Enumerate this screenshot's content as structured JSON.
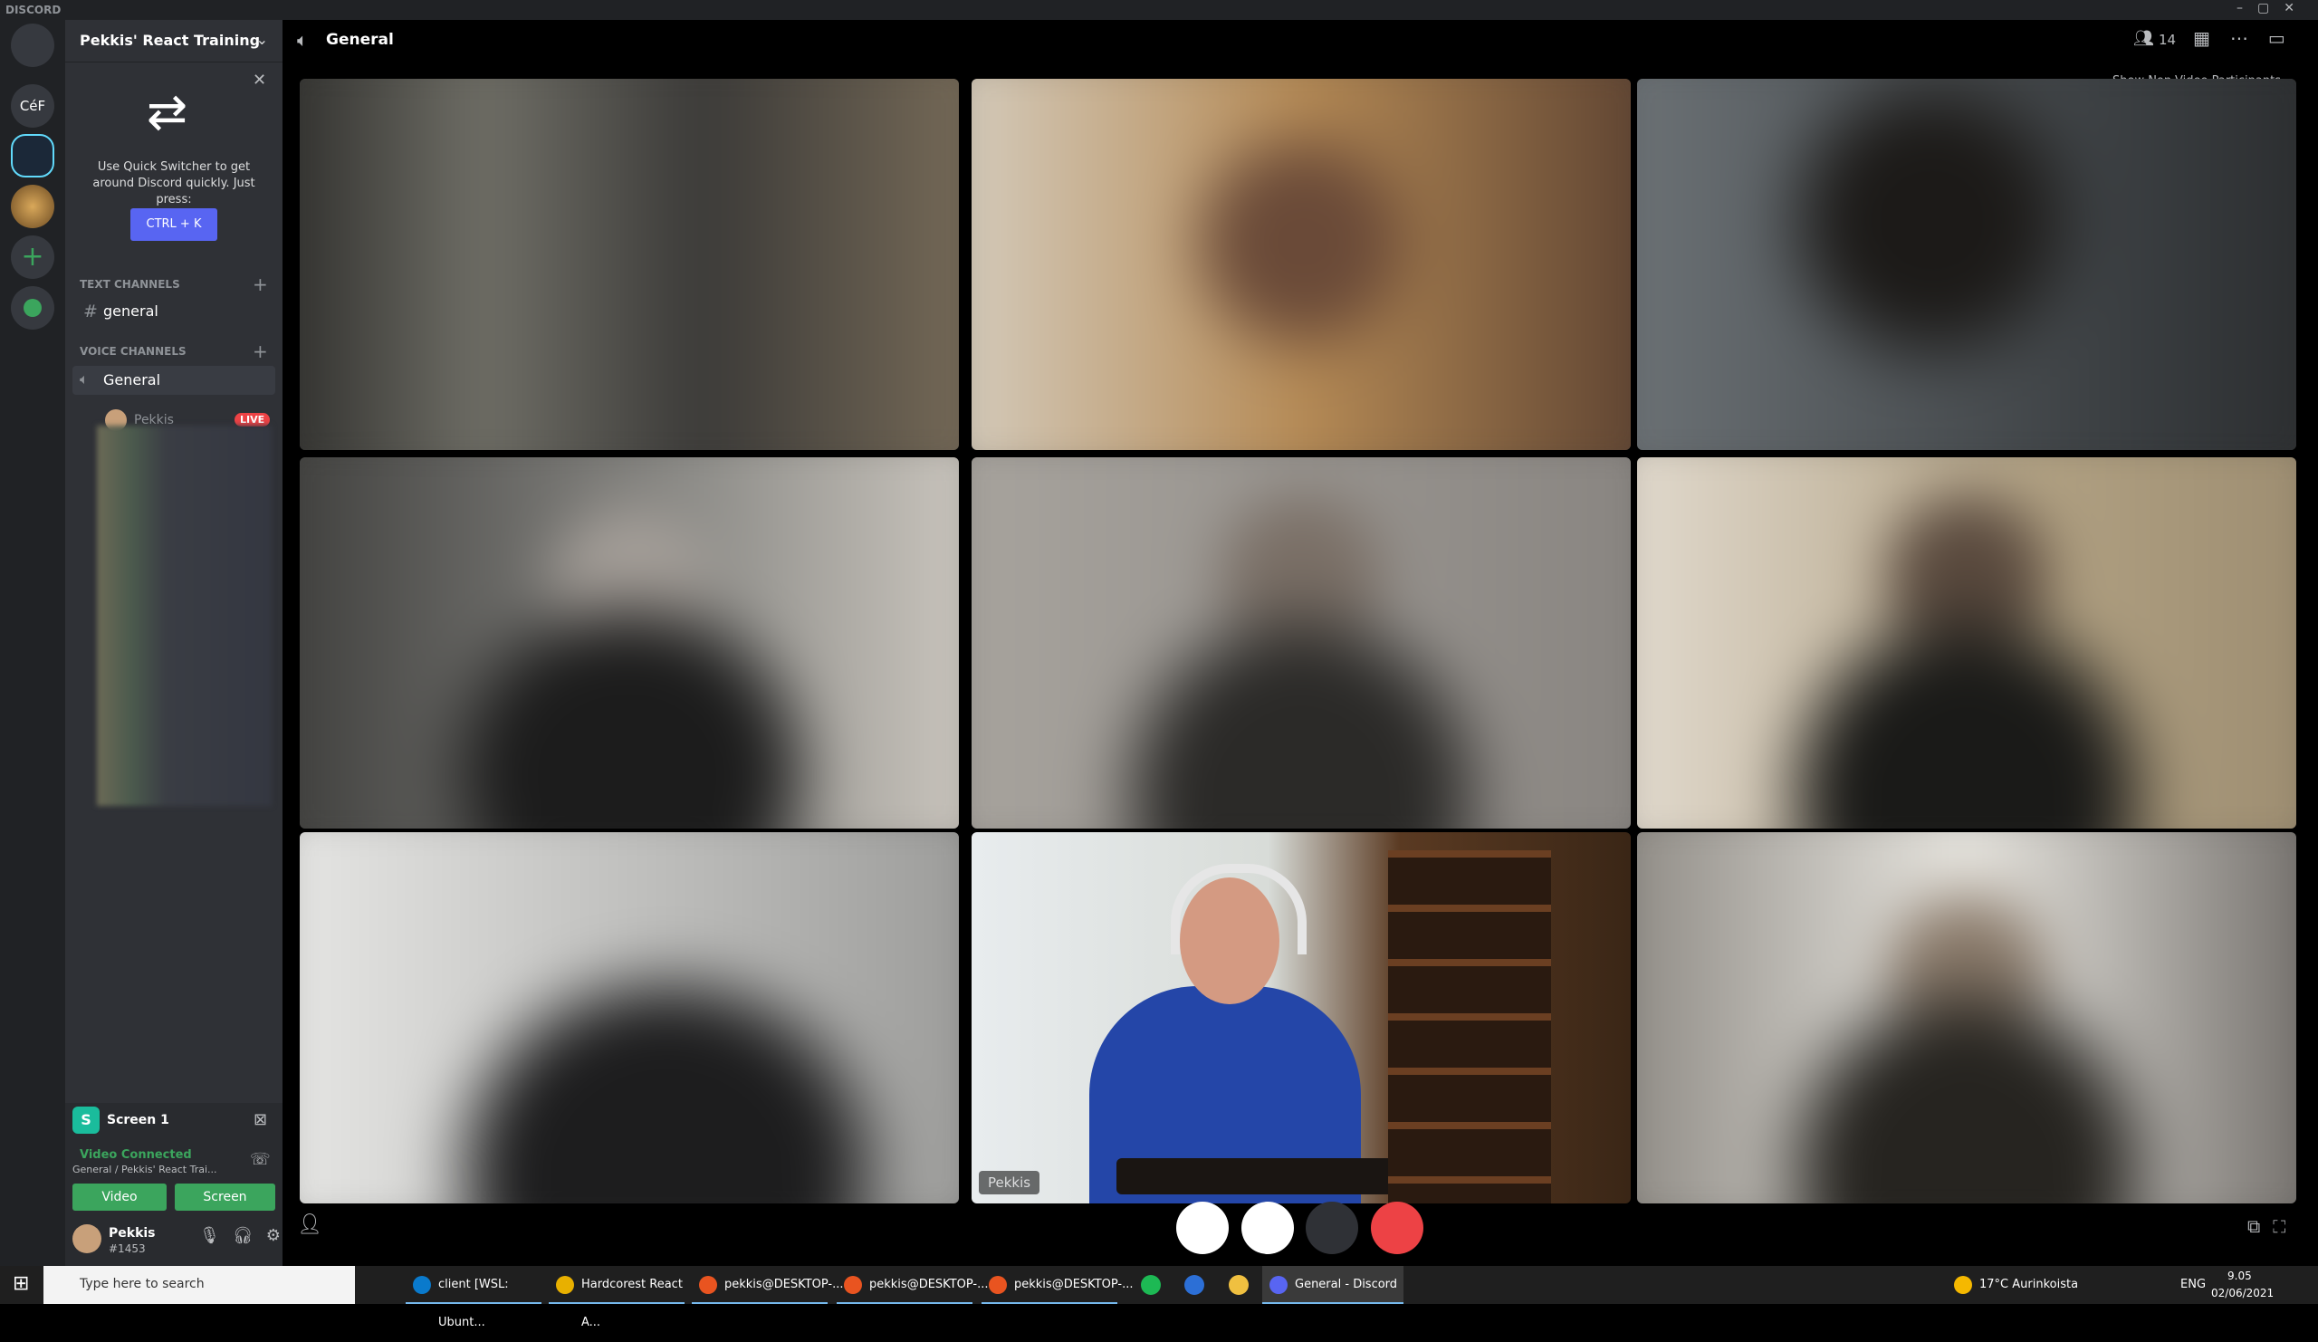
{
  "window": {
    "title": "DISCORD"
  },
  "servers": {
    "labels": [
      "CéF"
    ]
  },
  "sidebar": {
    "server_name": "Pekkis' React Training",
    "quick_switcher": {
      "text": "Use Quick Switcher to get around Discord quickly. Just press:",
      "shortcut": "CTRL + K"
    },
    "text_channels": {
      "heading": "TEXT CHANNELS",
      "channels": [
        "general"
      ]
    },
    "voice_channels": {
      "heading": "VOICE CHANNELS",
      "channels": [
        {
          "name": "General",
          "members": [
            {
              "name": "Pekkis",
              "badge": "LIVE"
            }
          ]
        }
      ]
    }
  },
  "stream_panel": {
    "name": "Screen 1",
    "status": "Video Connected",
    "location": "General / Pekkis' React Trai...",
    "buttons": [
      "Video",
      "Screen"
    ]
  },
  "user": {
    "name": "Pekkis",
    "tag": "#1453"
  },
  "header": {
    "channel": "General",
    "participants": 14,
    "tooltip": "Show Non-Video Participants"
  },
  "video": {
    "featured_name": "Pekkis"
  },
  "taskbar": {
    "search": "Type here to search",
    "apps": [
      "client [WSL: Ubunt...",
      "Hardcorest React A...",
      "pekkis@DESKTOP-...",
      "pekkis@DESKTOP-...",
      "pekkis@DESKTOP-...",
      "General - Discord"
    ],
    "weather": "17°C Aurinkoista",
    "language": "ENG",
    "time": "9.05",
    "date": "02/06/2021"
  }
}
